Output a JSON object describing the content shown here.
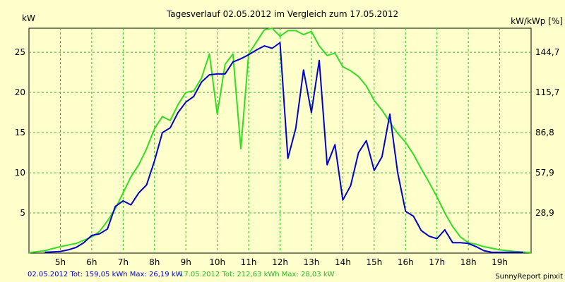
{
  "chart_data": {
    "type": "line",
    "title": "Tagesverlauf 02.05.2012 im Vergleich zum 17.05.2012",
    "ylabel_left": "kW",
    "ylabel_right": "kW/kWp [%]",
    "xlim": [
      4.0,
      20.0
    ],
    "ylim": [
      0,
      28
    ],
    "x_ticks": [
      5,
      6,
      7,
      8,
      9,
      10,
      11,
      12,
      13,
      14,
      15,
      16,
      17,
      18,
      19
    ],
    "x_tick_labels": [
      "5h",
      "6h",
      "7h",
      "8h",
      "9h",
      "10h",
      "11h",
      "12h",
      "13h",
      "14h",
      "15h",
      "16h",
      "17h",
      "18h",
      "19h"
    ],
    "y_ticks": [
      5,
      10,
      15,
      20,
      25
    ],
    "y_tick_labels": [
      "5",
      "10",
      "15",
      "20",
      "25"
    ],
    "y2_tick_labels": [
      "28,9",
      "57,9",
      "86,8",
      "115,7",
      "144,7"
    ],
    "grid": true,
    "series": [
      {
        "color": "#0000cc",
        "x": [
          4.5,
          5.0,
          5.25,
          5.5,
          5.75,
          6.0,
          6.25,
          6.5,
          6.75,
          7.0,
          7.25,
          7.5,
          7.75,
          8.0,
          8.25,
          8.5,
          8.75,
          9.0,
          9.25,
          9.5,
          9.75,
          10.0,
          10.25,
          10.5,
          10.75,
          11.0,
          11.25,
          11.5,
          11.75,
          12.0,
          12.25,
          12.5,
          12.75,
          13.0,
          13.25,
          13.5,
          13.75,
          14.0,
          14.25,
          14.5,
          14.75,
          15.0,
          15.25,
          15.5,
          15.75,
          16.0,
          16.25,
          16.5,
          16.75,
          17.0,
          17.25,
          17.5,
          17.75,
          18.0,
          18.25,
          18.5,
          18.75,
          19.0,
          19.25,
          19.5,
          19.75
        ],
        "values": [
          0.1,
          0.2,
          0.4,
          0.7,
          1.3,
          2.2,
          2.4,
          3.0,
          5.8,
          6.5,
          6.0,
          7.5,
          8.5,
          11.5,
          15.0,
          15.6,
          17.5,
          18.8,
          19.5,
          21.3,
          22.2,
          22.3,
          22.3,
          23.8,
          24.2,
          24.7,
          25.3,
          25.8,
          25.5,
          26.2,
          11.8,
          15.5,
          22.8,
          17.5,
          24.0,
          11.0,
          13.5,
          6.6,
          8.4,
          12.5,
          14.0,
          10.3,
          12.0,
          17.3,
          10.0,
          5.2,
          4.6,
          2.8,
          2.1,
          1.8,
          2.9,
          1.3,
          1.3,
          1.2,
          0.8,
          0.3,
          0.1,
          0.1,
          0.1,
          0.1,
          0.1
        ],
        "legend": "02.05.2012 Tot: 159,05 kWh Max: 26,19 kW"
      },
      {
        "color": "#33dd22",
        "x": [
          4.0,
          4.5,
          5.0,
          5.5,
          6.0,
          6.25,
          6.5,
          6.75,
          7.0,
          7.25,
          7.5,
          7.75,
          8.0,
          8.25,
          8.5,
          8.75,
          9.0,
          9.25,
          9.5,
          9.75,
          10.0,
          10.25,
          10.5,
          10.75,
          11.0,
          11.25,
          11.5,
          11.75,
          12.0,
          12.25,
          12.5,
          12.75,
          13.0,
          13.25,
          13.5,
          13.75,
          14.0,
          14.25,
          14.5,
          14.75,
          15.0,
          15.25,
          15.5,
          15.75,
          16.0,
          16.25,
          16.5,
          16.75,
          17.0,
          17.25,
          17.5,
          17.75,
          18.0,
          18.25,
          18.5,
          19.0,
          19.5,
          20.0
        ],
        "values": [
          0.05,
          0.3,
          0.8,
          1.2,
          2.0,
          2.7,
          4.0,
          5.5,
          7.5,
          9.5,
          11.0,
          13.0,
          15.5,
          17.0,
          16.5,
          18.5,
          20.0,
          20.2,
          21.8,
          24.8,
          17.3,
          23.5,
          24.8,
          13.0,
          24.8,
          26.3,
          27.8,
          28.0,
          27.0,
          27.7,
          27.7,
          27.2,
          27.6,
          25.8,
          24.6,
          24.9,
          23.2,
          22.7,
          22.0,
          20.8,
          19.0,
          17.8,
          16.3,
          14.9,
          13.8,
          12.3,
          10.5,
          8.8,
          7.0,
          5.0,
          3.3,
          2.0,
          1.3,
          1.1,
          0.8,
          0.4,
          0.2,
          0.05
        ],
        "legend": "17.05.2012 Tot: 212,63 kWh Max: 28,03 kW"
      }
    ]
  },
  "footer": {
    "legend_blue": "02.05.2012 Tot: 159,05 kWh Max: 26,19 kW",
    "legend_green": "17.05.2012 Tot: 212,63 kWh Max: 28,03 kW",
    "credit": "SunnyReport pinxit"
  }
}
